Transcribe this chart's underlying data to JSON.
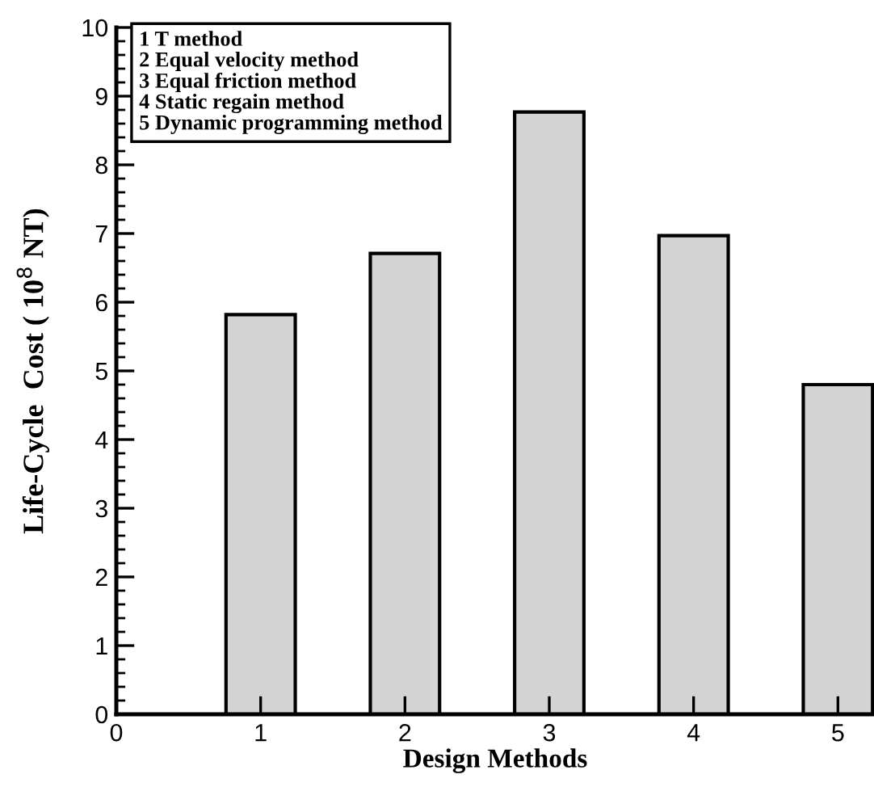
{
  "chart_data": {
    "type": "bar",
    "xlabel": "Design Methods",
    "ylabel": "Life-Cycle  Cost ( 10$^{8}$ NT)",
    "x": [
      1,
      2,
      3,
      4,
      5
    ],
    "values": [
      5.82,
      6.71,
      8.77,
      6.97,
      4.8
    ],
    "color": "#d3d3d3",
    "xlim": [
      0,
      5.25
    ],
    "xticks": [
      0,
      1,
      2,
      3,
      4,
      5
    ],
    "ylim": [
      0,
      10
    ],
    "yticks": [
      0,
      1,
      2,
      3,
      4,
      5,
      6,
      7,
      8,
      9,
      10
    ],
    "grid": false,
    "annotations": [
      "1 T method",
      "2 Equal velocity method",
      "3 Equal friction method",
      "4 Static regain method",
      "5 Dynamic programming method"
    ]
  }
}
